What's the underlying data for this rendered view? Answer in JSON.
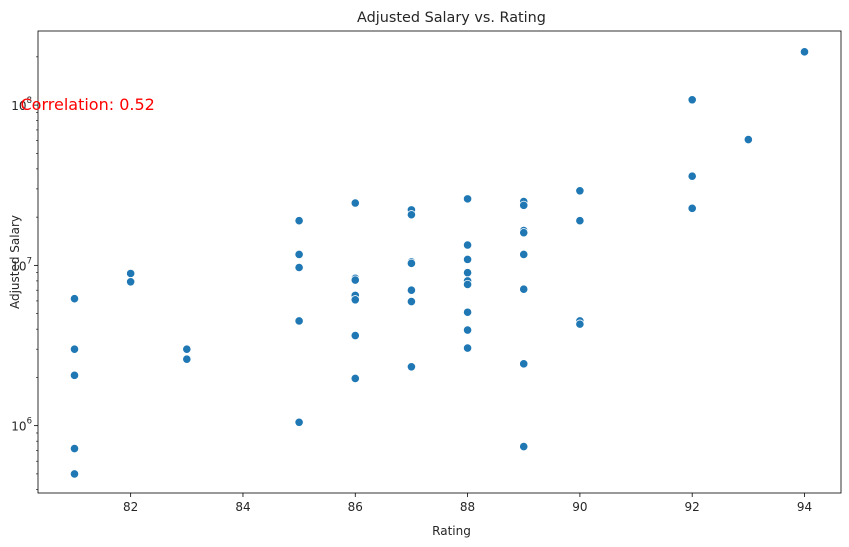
{
  "chart_data": {
    "type": "scatter",
    "title": "Adjusted Salary vs. Rating",
    "xlabel": "Rating",
    "ylabel": "Adjusted Salary",
    "xscale": "linear",
    "yscale": "log",
    "xlim": [
      80.35,
      94.65
    ],
    "ylim": [
      380000,
      290000000
    ],
    "xticks": [
      82,
      84,
      86,
      88,
      90,
      92,
      94
    ],
    "xtick_labels": [
      "82",
      "84",
      "86",
      "88",
      "90",
      "92",
      "94"
    ],
    "yticks": [
      1000000,
      10000000,
      100000000
    ],
    "ytick_labels": [
      "10",
      "10",
      "10"
    ],
    "ytick_exponents": [
      "6",
      "7",
      "8"
    ],
    "grid": false,
    "marker_color": "#1f77b4",
    "annotation": {
      "text": "Correlation: 0.52",
      "color": "#ff0000",
      "x": 81,
      "y": 100000000
    },
    "points": [
      [
        81,
        6200000
      ],
      [
        81,
        3000000
      ],
      [
        81,
        2060000
      ],
      [
        81,
        720000
      ],
      [
        81,
        500000
      ],
      [
        82,
        8900000
      ],
      [
        82,
        7900000
      ],
      [
        83,
        3000000
      ],
      [
        83,
        2600000
      ],
      [
        85,
        19000000
      ],
      [
        85,
        11700000
      ],
      [
        85,
        9700000
      ],
      [
        85,
        4500000
      ],
      [
        85,
        1050000
      ],
      [
        86,
        24500000
      ],
      [
        86,
        8300000
      ],
      [
        86,
        8100000
      ],
      [
        86,
        6500000
      ],
      [
        86,
        6100000
      ],
      [
        86,
        3650000
      ],
      [
        86,
        1970000
      ],
      [
        87,
        22200000
      ],
      [
        87,
        20700000
      ],
      [
        87,
        10500000
      ],
      [
        87,
        10300000
      ],
      [
        87,
        7000000
      ],
      [
        87,
        5950000
      ],
      [
        87,
        2330000
      ],
      [
        88,
        26000000
      ],
      [
        88,
        13400000
      ],
      [
        88,
        10900000
      ],
      [
        88,
        9000000
      ],
      [
        88,
        8000000
      ],
      [
        88,
        7600000
      ],
      [
        88,
        5100000
      ],
      [
        88,
        3950000
      ],
      [
        88,
        3050000
      ],
      [
        89,
        25000000
      ],
      [
        89,
        23700000
      ],
      [
        89,
        16500000
      ],
      [
        89,
        16000000
      ],
      [
        89,
        11700000
      ],
      [
        89,
        7100000
      ],
      [
        89,
        2430000
      ],
      [
        89,
        740000
      ],
      [
        90,
        29200000
      ],
      [
        90,
        19000000
      ],
      [
        90,
        4500000
      ],
      [
        90,
        4300000
      ],
      [
        92,
        108000000
      ],
      [
        92,
        36000000
      ],
      [
        92,
        22700000
      ],
      [
        93,
        61000000
      ],
      [
        94,
        215000000
      ]
    ]
  }
}
